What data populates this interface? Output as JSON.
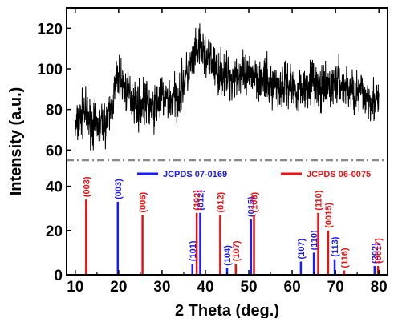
{
  "chart_data": [
    {
      "type": "line",
      "panel": "xrd-pattern",
      "xlabel": "2 Theta (deg.)",
      "ylabel": "Intensity (a.u.)",
      "xlim": [
        8,
        82
      ],
      "ylim": [
        55,
        130
      ],
      "x_ticks": [
        10,
        20,
        30,
        40,
        50,
        60,
        70,
        80
      ],
      "y_ticks": [
        60,
        80,
        100,
        120
      ],
      "line_color": "#000000",
      "series": [
        {
          "x": [
            10,
            11,
            12,
            13,
            14,
            15,
            16,
            17,
            18,
            19,
            20,
            21,
            22,
            23,
            24,
            25,
            26,
            27,
            28,
            29,
            30,
            31,
            32,
            33,
            34,
            35,
            36,
            37,
            38,
            39,
            40,
            41,
            42,
            43,
            44,
            45,
            46,
            47,
            48,
            49,
            50,
            51,
            52,
            53,
            54,
            55,
            56,
            57,
            58,
            59,
            60,
            61,
            62,
            63,
            64,
            65,
            66,
            67,
            68,
            69,
            70,
            71,
            72,
            73,
            74,
            75,
            76,
            77,
            78,
            79,
            80
          ],
          "values": [
            70,
            75,
            80,
            75,
            73,
            72,
            73,
            74,
            78,
            88,
            97,
            92,
            88,
            87,
            84,
            82,
            84,
            82,
            80,
            84,
            86,
            85,
            84,
            86,
            88,
            94,
            98,
            103,
            108,
            110,
            106,
            104,
            101,
            98,
            98,
            96,
            95,
            98,
            97,
            95,
            96,
            98,
            97,
            94,
            94,
            92,
            93,
            91,
            92,
            93,
            91,
            90,
            90,
            91,
            95,
            94,
            90,
            89,
            90,
            92,
            93,
            93,
            91,
            90,
            89,
            88,
            88,
            87,
            86,
            84,
            83
          ]
        }
      ]
    },
    {
      "type": "bar",
      "panel": "reference-patterns",
      "ylim": [
        0,
        50
      ],
      "y_ticks": [
        0,
        20,
        40
      ],
      "divider_color": "#888888",
      "series": [
        {
          "name": "JCPDS 07-0169",
          "color": "#1a1aff",
          "peaks": [
            {
              "x": 19.8,
              "value": 33,
              "hkl": "(003)"
            },
            {
              "x": 37.0,
              "value": 5,
              "hkl": "(101)"
            },
            {
              "x": 38.8,
              "value": 28,
              "hkl": "(012)"
            },
            {
              "x": 45.0,
              "value": 3,
              "hkl": "(104)"
            },
            {
              "x": 50.5,
              "value": 25,
              "hkl": "(015)"
            },
            {
              "x": 62.0,
              "value": 6,
              "hkl": "(107)"
            },
            {
              "x": 65.0,
              "value": 10,
              "hkl": "(110)"
            },
            {
              "x": 69.8,
              "value": 7,
              "hkl": "(113)"
            },
            {
              "x": 79.0,
              "value": 4,
              "hkl": "(202)"
            }
          ]
        },
        {
          "name": "JCPDS 06-0075",
          "color": "#ee1111",
          "peaks": [
            {
              "x": 12.5,
              "value": 34,
              "hkl": "(003)"
            },
            {
              "x": 25.5,
              "value": 27,
              "hkl": "(006)"
            },
            {
              "x": 38.0,
              "value": 28,
              "hkl": "(102)"
            },
            {
              "x": 43.4,
              "value": 27,
              "hkl": "(012)"
            },
            {
              "x": 47.0,
              "value": 5,
              "hkl": "(107)"
            },
            {
              "x": 51.2,
              "value": 27,
              "hkl": "(108)"
            },
            {
              "x": 66.0,
              "value": 28,
              "hkl": "(110)"
            },
            {
              "x": 68.3,
              "value": 20,
              "hkl": "(0015)"
            },
            {
              "x": 72.0,
              "value": 2,
              "hkl": "(116)"
            },
            {
              "x": 79.8,
              "value": 4,
              "hkl": "(0017)"
            }
          ]
        }
      ]
    }
  ]
}
